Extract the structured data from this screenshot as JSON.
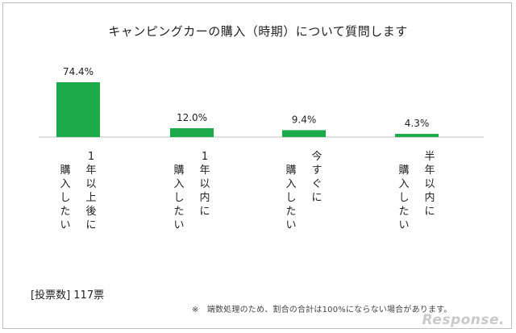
{
  "chart_data": {
    "type": "bar",
    "title": "キャンピングカーの購入（時期）について質問します",
    "categories": [
      "1年以上後に購入したい",
      "1年以内に購入したい",
      "今すぐに購入したい",
      "半年以内に購入したい"
    ],
    "category_lines": [
      [
        "1年以上後に",
        "購入したい"
      ],
      [
        "1年以内に",
        "購入したい"
      ],
      [
        "今すぐに",
        "購入したい"
      ],
      [
        "半年以内に",
        "購入したい"
      ]
    ],
    "values": [
      74.4,
      12.0,
      9.4,
      4.3
    ],
    "data_labels": [
      "74.4%",
      "12.0%",
      "9.4%",
      "4.3%"
    ],
    "ylim": [
      0,
      80
    ],
    "bar_color": "#1daa4b",
    "grid": false
  },
  "footer": {
    "count": "[投票数] 117票",
    "note": "※　端数処理のため、割合の合計は100%にならない場合があります。"
  },
  "watermark": "Response."
}
